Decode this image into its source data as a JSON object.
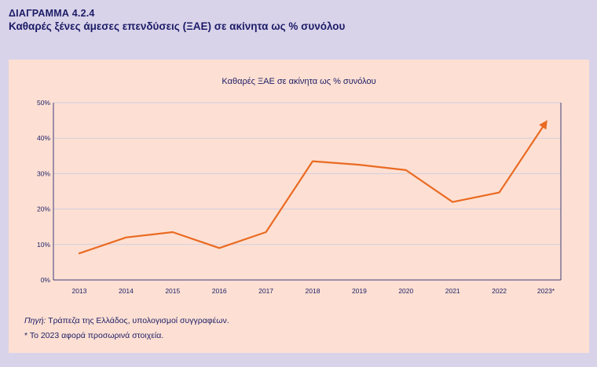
{
  "header": {
    "kicker": "ΔΙΑΓΡΑΜΜΑ 4.2.4",
    "title": "Καθαρές ξένες άμεσες επενδύσεις (ΞΑΕ) σε ακίνητα ως % συνόλου"
  },
  "footer": {
    "source_label": "Πηγή:",
    "source_text": " Τράπεζα της Ελλάδος, υπολογισμοί συγγραφέων.",
    "note_mark": "*",
    "note_text": " Το 2023 αφορά προσωρινά στοιχεία."
  },
  "colors": {
    "frame": "#d9d3ea",
    "panel": "#fde0d3",
    "line": "#ea6a22",
    "text": "#1c1c66",
    "grid": "#cfcde0",
    "axis": "#3f3a78"
  },
  "chart_data": {
    "type": "line",
    "title": "Καθαρές ΞΑΕ σε ακίνητα ως % συνόλου",
    "xlabel": "",
    "ylabel": "",
    "categories": [
      "2013",
      "2014",
      "2015",
      "2016",
      "2017",
      "2018",
      "2019",
      "2020",
      "2021",
      "2022",
      "2023*"
    ],
    "series": [
      {
        "values": [
          7.5,
          12,
          13.5,
          9,
          13.5,
          33.5,
          32.5,
          31,
          22,
          24.7,
          44.5
        ]
      }
    ],
    "ylim": [
      0,
      50
    ],
    "yticks": [
      0,
      10,
      20,
      30,
      40,
      50
    ],
    "ytick_labels": [
      "0%",
      "10%",
      "20%",
      "30%",
      "40%",
      "50%"
    ],
    "grid": true,
    "legend": "none",
    "last_point_arrow": true
  }
}
